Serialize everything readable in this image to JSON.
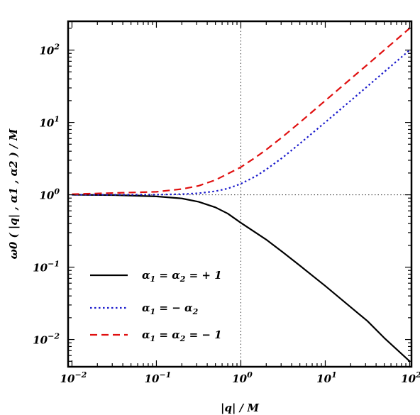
{
  "chart_data": {
    "type": "line",
    "xscale": "log",
    "yscale": "log",
    "xlim": [
      0.009,
      105
    ],
    "ylim": [
      0.0042,
      250
    ],
    "xlabel": "|q| / M",
    "ylabel": "ω0 ( |q| , α1 , α2 ) / M",
    "x_ticks": [
      {
        "value": 0.01,
        "base": "10",
        "exp": "−2"
      },
      {
        "value": 0.1,
        "base": "10",
        "exp": "−1"
      },
      {
        "value": 1,
        "base": "10",
        "exp": "0"
      },
      {
        "value": 10,
        "base": "10",
        "exp": "1"
      },
      {
        "value": 100,
        "base": "10",
        "exp": "2"
      }
    ],
    "y_ticks": [
      {
        "value": 0.01,
        "base": "10",
        "exp": "−2"
      },
      {
        "value": 0.1,
        "base": "10",
        "exp": "−1"
      },
      {
        "value": 1,
        "base": "10",
        "exp": "0"
      },
      {
        "value": 10,
        "base": "10",
        "exp": "1"
      },
      {
        "value": 100,
        "base": "10",
        "exp": "2"
      }
    ],
    "reference_lines": {
      "x": 1,
      "y": 1
    },
    "series": [
      {
        "name": "α1 = α2 = + 1",
        "label_parts": [
          "α",
          "1",
          " = α",
          "2",
          " = + 1"
        ],
        "color": "#000000",
        "dash": "solid",
        "x": [
          0.01,
          0.0316,
          0.1,
          0.2,
          0.316,
          0.5,
          0.7,
          1,
          1.5,
          2,
          3.16,
          5,
          10,
          20,
          31.6,
          50,
          100
        ],
        "y": [
          1.0,
          0.99,
          0.95,
          0.89,
          0.8,
          0.67,
          0.55,
          0.41,
          0.3,
          0.24,
          0.16,
          0.105,
          0.055,
          0.028,
          0.018,
          0.0105,
          0.005
        ]
      },
      {
        "name": "α1 = − α2",
        "label_parts": [
          "α",
          "1",
          " = − α",
          "2",
          ""
        ],
        "color": "#1a1acc",
        "dash": "dotted",
        "x": [
          0.01,
          0.1,
          0.2,
          0.316,
          0.5,
          0.7,
          1,
          1.5,
          2,
          3.16,
          5,
          10,
          20,
          31.6,
          50,
          100
        ],
        "y": [
          1.0,
          1.005,
          1.02,
          1.05,
          1.12,
          1.22,
          1.42,
          1.8,
          2.24,
          3.3,
          5.1,
          10.05,
          20.0,
          31.6,
          50.0,
          100
        ]
      },
      {
        "name": "α1 = α2 = − 1",
        "label_parts": [
          "α",
          "1",
          " = α",
          "2",
          " = − 1"
        ],
        "color": "#e01010",
        "dash": "dashed",
        "x": [
          0.01,
          0.1,
          0.2,
          0.316,
          0.5,
          0.7,
          1,
          1.5,
          2,
          3.16,
          5,
          10,
          20,
          31.6,
          50,
          100
        ],
        "y": [
          1.02,
          1.1,
          1.2,
          1.33,
          1.6,
          1.95,
          2.41,
          3.3,
          4.2,
          6.4,
          10.0,
          20.0,
          40.0,
          63.0,
          100.0,
          200
        ]
      }
    ],
    "legend_position": "bottom-left"
  }
}
